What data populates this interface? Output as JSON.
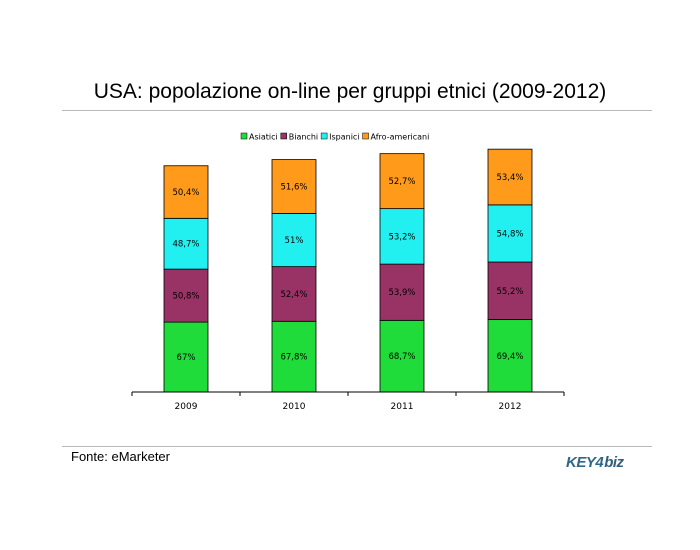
{
  "title": "USA: popolazione on-line per gruppi etnici (2009-2012)",
  "source": "Fonte: eMarketer",
  "logo": {
    "part1": "KEY",
    "part2": "4",
    "part3": "biz"
  },
  "colors": {
    "Asiatici": "#1fdc3a",
    "Bianchi": "#993366",
    "Ispanici": "#22f0f0",
    "Afro-americani": "#ff9a1a"
  },
  "chart_data": {
    "type": "bar",
    "stacked": true,
    "title": "USA: popolazione on-line per gruppi etnici (2009-2012)",
    "categories": [
      "2009",
      "2010",
      "2011",
      "2012"
    ],
    "legend_position": "top",
    "series": [
      {
        "name": "Asiatici",
        "values": [
          67,
          67.8,
          68.7,
          69.4
        ],
        "labels": [
          "67%",
          "67,8%",
          "68,7%",
          "69,4%"
        ]
      },
      {
        "name": "Bianchi",
        "values": [
          50.8,
          52.4,
          53.9,
          55.2
        ],
        "labels": [
          "50,8%",
          "52,4%",
          "53,9%",
          "55,2%"
        ]
      },
      {
        "name": "Ispanici",
        "values": [
          48.7,
          51,
          53.2,
          54.8
        ],
        "labels": [
          "48,7%",
          "51%",
          "53,2%",
          "54,8%"
        ]
      },
      {
        "name": "Afro-americani",
        "values": [
          50.4,
          51.6,
          52.7,
          53.4
        ],
        "labels": [
          "50,4%",
          "51,6%",
          "52,7%",
          "53,4%"
        ]
      }
    ],
    "ylim": [
      0,
      232
    ],
    "grid": false
  }
}
